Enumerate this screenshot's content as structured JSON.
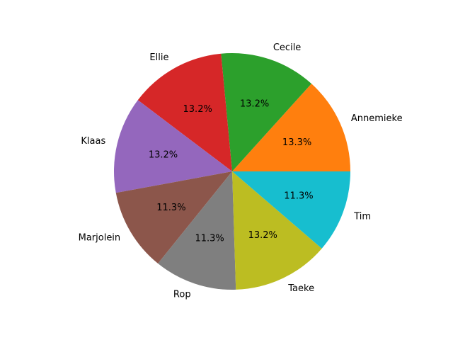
{
  "chart_data": {
    "type": "pie",
    "title": "",
    "start_angle_deg": 0,
    "direction": "counterclockwise",
    "slices": [
      {
        "label": "Annemieke",
        "value": 13.3,
        "pct_label": "13.3%",
        "color": "#ff7f0e"
      },
      {
        "label": "Cecile",
        "value": 13.2,
        "pct_label": "13.2%",
        "color": "#2ca02c"
      },
      {
        "label": "Ellie",
        "value": 13.2,
        "pct_label": "13.2%",
        "color": "#d62728"
      },
      {
        "label": "Klaas",
        "value": 13.2,
        "pct_label": "13.2%",
        "color": "#9467bd"
      },
      {
        "label": "Marjolein",
        "value": 11.3,
        "pct_label": "11.3%",
        "color": "#8c564b"
      },
      {
        "label": "Rop",
        "value": 11.3,
        "pct_label": "11.3%",
        "color": "#7f7f7f"
      },
      {
        "label": "Taeke",
        "value": 13.2,
        "pct_label": "13.2%",
        "color": "#bcbd22"
      },
      {
        "label": "Tim",
        "value": 11.3,
        "pct_label": "11.3%",
        "color": "#17becf"
      }
    ]
  }
}
